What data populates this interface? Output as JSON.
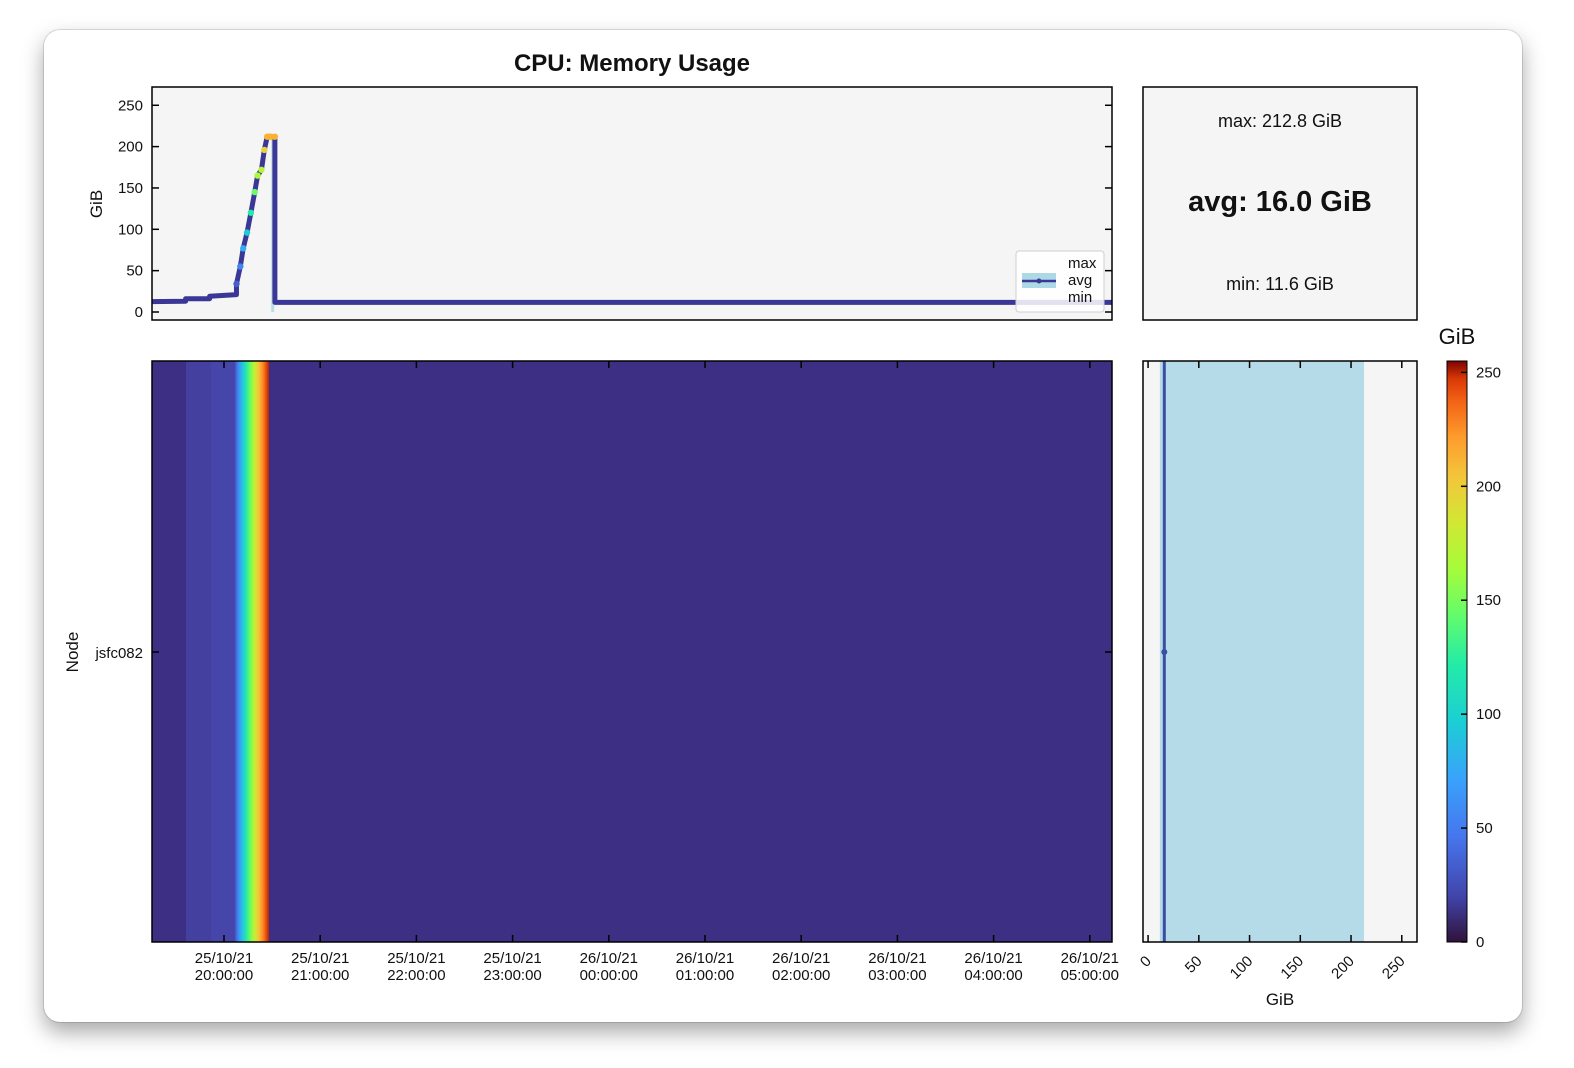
{
  "chart_data": [
    {
      "type": "line",
      "title": "CPU: Memory Usage",
      "ylabel": "GiB",
      "ylim": [
        0,
        260
      ],
      "yticks": [
        0,
        50,
        100,
        150,
        200,
        250
      ],
      "x_range_hours": [
        0,
        10
      ],
      "series": [
        {
          "name": "avg",
          "x_hours": [
            0.0,
            0.35,
            0.35,
            0.6,
            0.6,
            0.88,
            0.88,
            0.92,
            0.95,
            0.99,
            1.03,
            1.07,
            1.1,
            1.14,
            1.17,
            1.2,
            1.22,
            1.24,
            1.28,
            1.28,
            9.0,
            10.0
          ],
          "values": [
            12.6,
            13,
            16,
            16,
            19,
            21,
            34,
            55,
            77,
            96,
            120,
            145,
            165,
            172,
            196,
            212,
            212,
            212,
            212,
            11.6,
            11.6,
            11.6
          ]
        }
      ],
      "legend": [
        "max",
        "avg",
        "min"
      ],
      "legend_position": "lower-right"
    },
    {
      "type": "heatmap",
      "ylabel": "Node",
      "rows": [
        "jsfc082"
      ],
      "xtick_labels": [
        [
          "25/10/21",
          "20:00:00"
        ],
        [
          "25/10/21",
          "21:00:00"
        ],
        [
          "25/10/21",
          "22:00:00"
        ],
        [
          "25/10/21",
          "23:00:00"
        ],
        [
          "26/10/21",
          "00:00:00"
        ],
        [
          "26/10/21",
          "01:00:00"
        ],
        [
          "26/10/21",
          "02:00:00"
        ],
        [
          "26/10/21",
          "03:00:00"
        ],
        [
          "26/10/21",
          "04:00:00"
        ],
        [
          "26/10/21",
          "05:00:00"
        ]
      ],
      "colorbar": {
        "label": "GiB",
        "range": [
          0,
          255
        ],
        "ticks": [
          0,
          50,
          100,
          150,
          200,
          250
        ],
        "colormap": "turbo"
      }
    },
    {
      "type": "range",
      "xlabel": "GiB",
      "xlim": [
        -5,
        265
      ],
      "xticks": [
        0,
        50,
        100,
        150,
        200,
        250
      ],
      "min": 11.6,
      "avg": 16.0,
      "max": 212.8
    }
  ],
  "stats": {
    "max_label": "max: 212.8 GiB",
    "avg_label": "avg: 16.0 GiB",
    "min_label": "min: 11.6 GiB"
  },
  "colors": {
    "avg_line": "#3b3796",
    "range_fill": "#add8e6",
    "panel_bg": "#f5f5f5"
  }
}
